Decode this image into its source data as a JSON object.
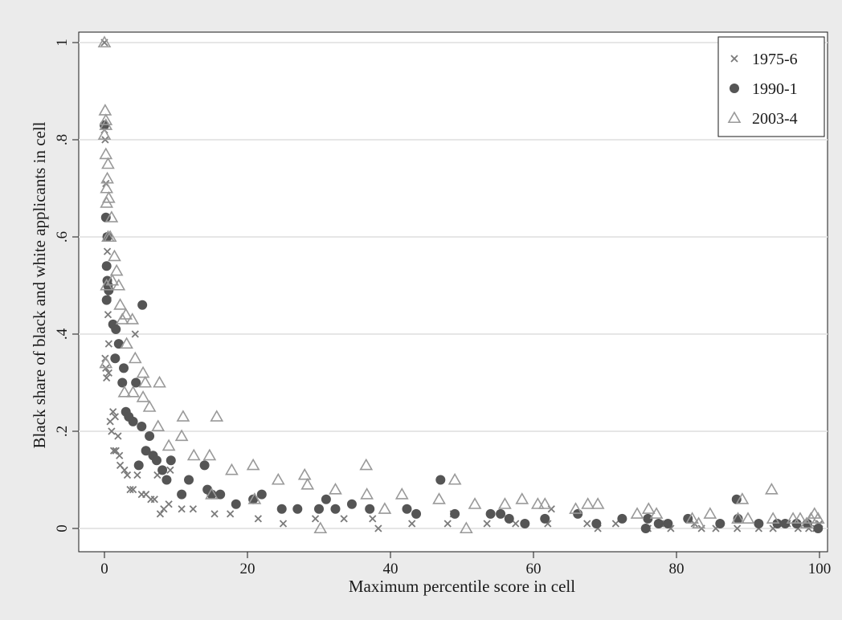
{
  "chart_data": {
    "type": "scatter",
    "title": "",
    "xlabel": "Maximum percentile score in cell",
    "ylabel": "Black share of black and white applicants in cell",
    "xlim": [
      0,
      100
    ],
    "ylim": [
      0,
      1
    ],
    "xticks": [
      0,
      20,
      40,
      60,
      80,
      100
    ],
    "xtick_labels": [
      "0",
      "20",
      "40",
      "60",
      "80",
      "100"
    ],
    "yticks": [
      0,
      0.2,
      0.4,
      0.6,
      0.8,
      1
    ],
    "ytick_labels": [
      "0",
      ".2",
      ".4",
      ".6",
      ".8",
      "1"
    ],
    "grid": true,
    "legend_position": "top-right",
    "colors": {
      "background": "#ebebeb",
      "plot_background": "#ffffff",
      "grid": "#e6e6e6",
      "axis": "#1a1a1a"
    },
    "series": [
      {
        "name": "1975-6",
        "marker": "x",
        "color": "#7a7a7a",
        "points": [
          [
            0.0,
            1.0
          ],
          [
            0.0,
            0.82
          ],
          [
            0.1,
            0.8
          ],
          [
            0.2,
            0.71
          ],
          [
            0.3,
            0.6
          ],
          [
            0.4,
            0.57
          ],
          [
            0.5,
            0.48
          ],
          [
            0.5,
            0.44
          ],
          [
            0.6,
            0.38
          ],
          [
            0.1,
            0.35
          ],
          [
            0.2,
            0.33
          ],
          [
            0.3,
            0.31
          ],
          [
            0.6,
            0.32
          ],
          [
            0.8,
            0.22
          ],
          [
            1.2,
            0.24
          ],
          [
            1.5,
            0.23
          ],
          [
            1.0,
            0.2
          ],
          [
            1.3,
            0.16
          ],
          [
            1.6,
            0.16
          ],
          [
            2.1,
            0.15
          ],
          [
            1.9,
            0.19
          ],
          [
            2.2,
            0.13
          ],
          [
            2.8,
            0.12
          ],
          [
            3.2,
            0.11
          ],
          [
            3.6,
            0.08
          ],
          [
            4.0,
            0.08
          ],
          [
            4.3,
            0.4
          ],
          [
            4.6,
            0.11
          ],
          [
            5.2,
            0.07
          ],
          [
            5.8,
            0.07
          ],
          [
            6.5,
            0.06
          ],
          [
            7.0,
            0.06
          ],
          [
            7.4,
            0.11
          ],
          [
            7.8,
            0.03
          ],
          [
            8.3,
            0.04
          ],
          [
            9.2,
            0.12
          ],
          [
            9.0,
            0.05
          ],
          [
            10.8,
            0.04
          ],
          [
            12.4,
            0.04
          ],
          [
            15.4,
            0.03
          ],
          [
            17.6,
            0.03
          ],
          [
            21.5,
            0.02
          ],
          [
            25.0,
            0.01
          ],
          [
            29.5,
            0.02
          ],
          [
            33.5,
            0.02
          ],
          [
            37.5,
            0.02
          ],
          [
            38.3,
            0.0
          ],
          [
            43.0,
            0.01
          ],
          [
            48.0,
            0.01
          ],
          [
            48.8,
            0.03
          ],
          [
            53.5,
            0.01
          ],
          [
            57.5,
            0.01
          ],
          [
            62.0,
            0.01
          ],
          [
            62.5,
            0.04
          ],
          [
            67.5,
            0.01
          ],
          [
            69.0,
            0.0
          ],
          [
            71.5,
            0.01
          ],
          [
            76.0,
            0.0
          ],
          [
            78.5,
            0.01
          ],
          [
            79.2,
            0.0
          ],
          [
            82.5,
            0.01
          ],
          [
            83.5,
            0.0
          ],
          [
            85.5,
            0.0
          ],
          [
            88.5,
            0.0
          ],
          [
            91.5,
            0.0
          ],
          [
            93.5,
            0.0
          ],
          [
            95.5,
            0.01
          ],
          [
            97.0,
            0.0
          ],
          [
            98.5,
            0.0
          ],
          [
            99.5,
            0.0
          ],
          [
            100.0,
            0.01
          ]
        ]
      },
      {
        "name": "1990-1",
        "marker": "circle",
        "color": "#555555",
        "points": [
          [
            0.0,
            0.83
          ],
          [
            0.2,
            0.64
          ],
          [
            0.4,
            0.6
          ],
          [
            0.3,
            0.54
          ],
          [
            0.4,
            0.51
          ],
          [
            0.5,
            0.5
          ],
          [
            0.3,
            0.47
          ],
          [
            0.6,
            0.49
          ],
          [
            1.2,
            0.42
          ],
          [
            1.6,
            0.41
          ],
          [
            2.0,
            0.38
          ],
          [
            1.5,
            0.35
          ],
          [
            2.5,
            0.3
          ],
          [
            2.7,
            0.33
          ],
          [
            3.0,
            0.24
          ],
          [
            3.4,
            0.23
          ],
          [
            4.0,
            0.22
          ],
          [
            4.4,
            0.3
          ],
          [
            4.8,
            0.13
          ],
          [
            5.2,
            0.21
          ],
          [
            5.3,
            0.46
          ],
          [
            5.8,
            0.16
          ],
          [
            6.3,
            0.19
          ],
          [
            6.8,
            0.15
          ],
          [
            7.3,
            0.14
          ],
          [
            8.1,
            0.12
          ],
          [
            8.7,
            0.1
          ],
          [
            9.3,
            0.14
          ],
          [
            10.8,
            0.07
          ],
          [
            11.8,
            0.1
          ],
          [
            14.0,
            0.13
          ],
          [
            14.4,
            0.08
          ],
          [
            15.0,
            0.07
          ],
          [
            16.2,
            0.07
          ],
          [
            18.4,
            0.05
          ],
          [
            20.8,
            0.06
          ],
          [
            22.0,
            0.07
          ],
          [
            24.8,
            0.04
          ],
          [
            27.0,
            0.04
          ],
          [
            30.0,
            0.04
          ],
          [
            31.0,
            0.06
          ],
          [
            32.3,
            0.04
          ],
          [
            34.6,
            0.05
          ],
          [
            37.1,
            0.04
          ],
          [
            42.3,
            0.04
          ],
          [
            43.6,
            0.03
          ],
          [
            47.0,
            0.1
          ],
          [
            49.0,
            0.03
          ],
          [
            54.0,
            0.03
          ],
          [
            55.4,
            0.03
          ],
          [
            56.6,
            0.02
          ],
          [
            58.8,
            0.01
          ],
          [
            61.6,
            0.02
          ],
          [
            66.2,
            0.03
          ],
          [
            68.8,
            0.01
          ],
          [
            72.4,
            0.02
          ],
          [
            75.7,
            0.0
          ],
          [
            76.0,
            0.02
          ],
          [
            77.5,
            0.01
          ],
          [
            78.8,
            0.01
          ],
          [
            81.6,
            0.02
          ],
          [
            86.1,
            0.01
          ],
          [
            88.4,
            0.06
          ],
          [
            88.6,
            0.02
          ],
          [
            91.5,
            0.01
          ],
          [
            94.1,
            0.01
          ],
          [
            95.2,
            0.01
          ],
          [
            96.8,
            0.01
          ],
          [
            98.3,
            0.01
          ],
          [
            99.8,
            0.0
          ]
        ]
      },
      {
        "name": "2003-4",
        "marker": "triangle",
        "color": "#999999",
        "points": [
          [
            0.0,
            1.0
          ],
          [
            0.2,
            0.83
          ],
          [
            0.1,
            0.86
          ],
          [
            0.2,
            0.84
          ],
          [
            0.0,
            0.81
          ],
          [
            0.2,
            0.77
          ],
          [
            0.4,
            0.72
          ],
          [
            0.5,
            0.75
          ],
          [
            0.3,
            0.7
          ],
          [
            0.3,
            0.67
          ],
          [
            0.6,
            0.68
          ],
          [
            1.0,
            0.64
          ],
          [
            0.5,
            0.6
          ],
          [
            0.8,
            0.6
          ],
          [
            1.4,
            0.56
          ],
          [
            1.7,
            0.53
          ],
          [
            2.0,
            0.5
          ],
          [
            0.3,
            0.5
          ],
          [
            1.1,
            0.51
          ],
          [
            2.2,
            0.46
          ],
          [
            2.5,
            0.43
          ],
          [
            3.0,
            0.44
          ],
          [
            3.9,
            0.43
          ],
          [
            4.3,
            0.35
          ],
          [
            3.1,
            0.38
          ],
          [
            0.2,
            0.34
          ],
          [
            2.8,
            0.28
          ],
          [
            4.0,
            0.28
          ],
          [
            5.4,
            0.32
          ],
          [
            5.7,
            0.3
          ],
          [
            5.4,
            0.27
          ],
          [
            6.3,
            0.25
          ],
          [
            7.7,
            0.3
          ],
          [
            7.5,
            0.21
          ],
          [
            9.0,
            0.17
          ],
          [
            10.8,
            0.19
          ],
          [
            11.0,
            0.23
          ],
          [
            12.5,
            0.15
          ],
          [
            14.7,
            0.15
          ],
          [
            15.0,
            0.07
          ],
          [
            15.7,
            0.23
          ],
          [
            17.8,
            0.12
          ],
          [
            20.8,
            0.13
          ],
          [
            21.0,
            0.06
          ],
          [
            24.3,
            0.1
          ],
          [
            28.0,
            0.11
          ],
          [
            28.4,
            0.09
          ],
          [
            30.2,
            0.0
          ],
          [
            32.3,
            0.08
          ],
          [
            36.7,
            0.07
          ],
          [
            36.6,
            0.13
          ],
          [
            39.2,
            0.04
          ],
          [
            41.6,
            0.07
          ],
          [
            46.8,
            0.06
          ],
          [
            49.0,
            0.1
          ],
          [
            50.6,
            0.0
          ],
          [
            51.8,
            0.05
          ],
          [
            56.0,
            0.05
          ],
          [
            58.4,
            0.06
          ],
          [
            60.6,
            0.05
          ],
          [
            61.6,
            0.05
          ],
          [
            65.9,
            0.04
          ],
          [
            67.6,
            0.05
          ],
          [
            69.0,
            0.05
          ],
          [
            74.5,
            0.03
          ],
          [
            76.1,
            0.04
          ],
          [
            77.2,
            0.03
          ],
          [
            82.2,
            0.02
          ],
          [
            84.7,
            0.03
          ],
          [
            83.1,
            0.01
          ],
          [
            88.6,
            0.02
          ],
          [
            89.2,
            0.06
          ],
          [
            90.0,
            0.02
          ],
          [
            93.3,
            0.08
          ],
          [
            93.5,
            0.02
          ],
          [
            96.3,
            0.02
          ],
          [
            97.3,
            0.02
          ],
          [
            98.2,
            0.01
          ],
          [
            98.8,
            0.02
          ],
          [
            99.3,
            0.03
          ],
          [
            99.8,
            0.02
          ]
        ]
      }
    ]
  }
}
